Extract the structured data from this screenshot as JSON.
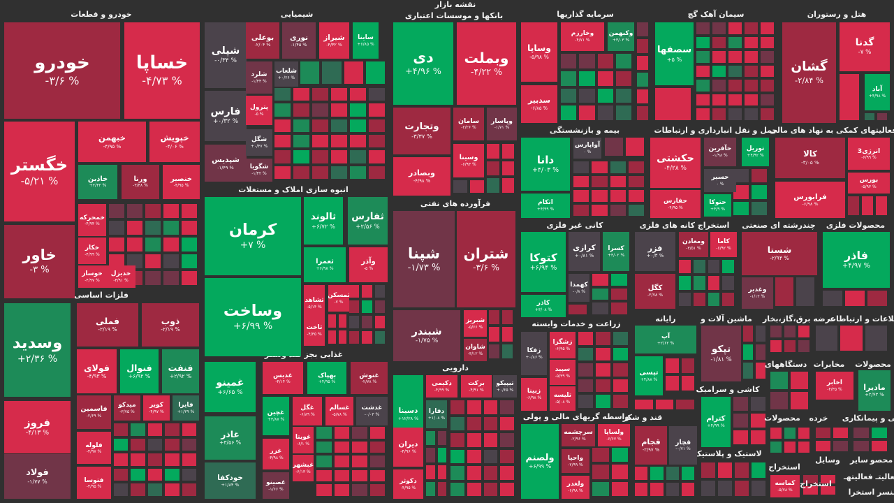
{
  "header": {
    "title": "نقشه بازار"
  },
  "colors": {
    "R": "#d62b4b",
    "r": "#9e2941",
    "m": "#713548",
    "g": "#4b434b",
    "G": "#04a95d",
    "d": "#1d8b58",
    "D": "#2f6b54"
  },
  "sectors": [
    {
      "title": "خودرو و قطعات"
    },
    {
      "title": "شیمیایی"
    },
    {
      "title": "بانکها و موسسات اعتباری"
    },
    {
      "title": "سرمایه گذاریها"
    },
    {
      "title": "سیمان آهک گچ"
    },
    {
      "title": "هتل و رستوران"
    },
    {
      "title": "بیمه و بازنشستگی"
    },
    {
      "title": "حمل و نقل انبارداری و ارتباطات"
    },
    {
      "title": "فعالیتهای کمکی به نهاد های مالی"
    },
    {
      "title": "انبوه سازی املاک و مستغلات"
    },
    {
      "title": "فرآورده های نفتی"
    },
    {
      "title": "کانی غیر فلزی"
    },
    {
      "title": "استخراج کانه های فلزی"
    },
    {
      "title": "چندرشته ای صنعتی"
    },
    {
      "title": "محصولات فلزی"
    },
    {
      "title": "فلزات اساسی"
    },
    {
      "title": "زراعت و خدمات وابسته"
    },
    {
      "title": "رایانه"
    },
    {
      "title": "ماشین آلات و"
    },
    {
      "title": "عرضه برق،گاز،بخار"
    },
    {
      "title": "اطلاعات و ارتباطات"
    },
    {
      "title": "غذایی بجز قند وشکر"
    },
    {
      "title": "دارویی"
    },
    {
      "title": "دستگاههای"
    },
    {
      "title": "مخابرات"
    },
    {
      "title": "محصولات"
    },
    {
      "title": "کاشی و سرامیک"
    },
    {
      "title": "واسطه گریهای مالی و پولی"
    },
    {
      "title": "قند و شکر"
    },
    {
      "title": "فنی و پیمانکاری"
    },
    {
      "title": "خرده"
    },
    {
      "title": "محصولات"
    },
    {
      "title": "لاستیک و پلاستیک"
    },
    {
      "title": "وسایل"
    },
    {
      "title": "سایر"
    },
    {
      "title": "محصو"
    },
    {
      "title": "استخراج"
    },
    {
      "title": "فعالیتـ فعالیتهـ"
    },
    {
      "title": "استخراج"
    },
    {
      "title": "منسر استخرا"
    }
  ],
  "tiles": [
    {
      "symbol": "خودرو",
      "change": "-۳/۶ %",
      "tone": "r"
    },
    {
      "symbol": "خساپا",
      "change": "-۴/۷۳ %",
      "tone": "R"
    },
    {
      "symbol": "خگستر",
      "change": "-۵/۲۱ %",
      "tone": "R"
    },
    {
      "symbol": "خبهمن",
      "change": "-۴/۹۵ %",
      "tone": "R"
    },
    {
      "symbol": "خپویش",
      "change": "-۴/۰۶ %",
      "tone": "R"
    },
    {
      "symbol": "خاذین",
      "change": "+۲/۴۲ %",
      "tone": "d"
    },
    {
      "symbol": "ورنا",
      "change": "-۳/۴۸ %",
      "tone": "r"
    },
    {
      "symbol": "خنصیر",
      "change": "-۴/۹۵ %",
      "tone": "R"
    },
    {
      "symbol": "خاور",
      "change": "-۳ %",
      "tone": "r"
    },
    {
      "symbol": "خمحرکه",
      "change": "-۴/۹۴ %",
      "tone": "R"
    },
    {
      "symbol": "خکار",
      "change": "-۴/۹۹ %",
      "tone": "R"
    },
    {
      "symbol": "خوساز",
      "change": "-۴/۹۷ %",
      "tone": "R"
    },
    {
      "symbol": "خدیزل",
      "change": "-۴/۹۱ %",
      "tone": "R"
    },
    {
      "symbol": "وسدید",
      "change": "+۲/۳۶ %",
      "tone": "d"
    },
    {
      "symbol": "فروز",
      "change": "-۴/۱۳ %",
      "tone": "R"
    },
    {
      "symbol": "فولاد",
      "change": "-۱/۷۷ %",
      "tone": "m"
    },
    {
      "symbol": "فملی",
      "change": "-۲/۱۹ %",
      "tone": "r"
    },
    {
      "symbol": "ذوب",
      "change": "-۲/۱۹ %",
      "tone": "r"
    },
    {
      "symbol": "فولای",
      "change": "-۴/۹۳ %",
      "tone": "R"
    },
    {
      "symbol": "فنوال",
      "change": "+۶/۹۲ %",
      "tone": "G"
    },
    {
      "symbol": "فنفت",
      "change": "+۲/۹۲ %",
      "tone": "d"
    },
    {
      "symbol": "فاسمین",
      "change": "-۲/۶۹ %",
      "tone": "r"
    },
    {
      "symbol": "میدکو",
      "change": "-۳/۷۵ %",
      "tone": "r"
    },
    {
      "symbol": "کویر",
      "change": "-۴/۹۷ %",
      "tone": "R"
    },
    {
      "symbol": "فایرا",
      "change": "+۱/۳۹ %",
      "tone": "D"
    },
    {
      "symbol": "فلوله",
      "change": "-۴/۹۷ %",
      "tone": "R"
    },
    {
      "symbol": "فتوسا",
      "change": "-۴/۹۵ %",
      "tone": "R"
    },
    {
      "symbol": "شپلی",
      "change": "-۰/۳۴ %",
      "tone": "g"
    },
    {
      "symbol": "فارس",
      "change": "+۰/۳۲ %",
      "tone": "g"
    },
    {
      "symbol": "شپدیس",
      "change": "-۱/۴۹ %",
      "tone": "m"
    },
    {
      "symbol": "بوعلی",
      "change": "-۲/۰۴ %",
      "tone": "r"
    },
    {
      "symbol": "نوری",
      "change": "-۱/۴۵ %",
      "tone": "m"
    },
    {
      "symbol": "شیراز",
      "change": "-۴/۳۲ %",
      "tone": "R"
    },
    {
      "symbol": "ساینا",
      "change": "+۶/۸۵ %",
      "tone": "G"
    },
    {
      "symbol": "شلرد",
      "change": "-۱/۴۴ %",
      "tone": "m"
    },
    {
      "symbol": "شلعاب",
      "change": "+۰/۲۶ %",
      "tone": "g"
    },
    {
      "symbol": "پترول",
      "change": "-۵ %",
      "tone": "R"
    },
    {
      "symbol": "شگل",
      "change": "+۰/۴۷ %",
      "tone": "g"
    },
    {
      "symbol": "شگویا",
      "change": "-۱/۴۲ %",
      "tone": "m"
    },
    {
      "symbol": "کرمان",
      "change": "+۷ %",
      "tone": "G"
    },
    {
      "symbol": "وساخت",
      "change": "+۶/۹۹ %",
      "tone": "G"
    },
    {
      "symbol": "ثالوند",
      "change": "+۶/۷۲ %",
      "tone": "G"
    },
    {
      "symbol": "ثفارس",
      "change": "+۲/۵۶ %",
      "tone": "d"
    },
    {
      "symbol": "ثعمرا",
      "change": "+۶/۹۸ %",
      "tone": "G"
    },
    {
      "symbol": "وآذر",
      "change": "-۵ %",
      "tone": "R"
    },
    {
      "symbol": "ثشاهد",
      "change": "-۵/۱۴ %",
      "tone": "R"
    },
    {
      "symbol": "ثمسکن",
      "change": "-۷ %",
      "tone": "R"
    },
    {
      "symbol": "ثاخت",
      "change": "-۴/۳۵ %",
      "tone": "R"
    },
    {
      "symbol": "غمینو",
      "change": "+۶/۶۵ %",
      "tone": "G"
    },
    {
      "symbol": "غاذر",
      "change": "+۳/۵۶ %",
      "tone": "d"
    },
    {
      "symbol": "خودکفا",
      "change": "+۱/۸۴ %",
      "tone": "D"
    },
    {
      "symbol": "غدیس",
      "change": "-۴/۱۴ %",
      "tone": "R"
    },
    {
      "symbol": "بهپاک",
      "change": "+۴/۹۵ %",
      "tone": "G"
    },
    {
      "symbol": "غنوش",
      "change": "-۲/۷۸ %",
      "tone": "r"
    },
    {
      "symbol": "غچین",
      "change": "+۳/۸۷ %",
      "tone": "G"
    },
    {
      "symbol": "غگل",
      "change": "-۶/۸۹ %",
      "tone": "R"
    },
    {
      "symbol": "غسالم",
      "change": "-۵/۷۸ %",
      "tone": "R"
    },
    {
      "symbol": "غدشت",
      "change": "-۰/۰۳ %",
      "tone": "g"
    },
    {
      "symbol": "غویتا",
      "change": "-۶/۱ %",
      "tone": "R"
    },
    {
      "symbol": "غزر",
      "change": "-۴/۹۸ %",
      "tone": "R"
    },
    {
      "symbol": "غبشهر",
      "change": "-۶/۱۳ %",
      "tone": "R"
    },
    {
      "symbol": "غصینو",
      "change": "-۱/۶۶ %",
      "tone": "m"
    },
    {
      "symbol": "دی",
      "change": "+۴/۹۶ %",
      "tone": "G"
    },
    {
      "symbol": "وبملت",
      "change": "-۴/۲۲ %",
      "tone": "R"
    },
    {
      "symbol": "وتجارت",
      "change": "-۳/۳۷ %",
      "tone": "r"
    },
    {
      "symbol": "وبصادر",
      "change": "-۴/۹۸ %",
      "tone": "R"
    },
    {
      "symbol": "سامان",
      "change": "-۲/۲۶ %",
      "tone": "r"
    },
    {
      "symbol": "وپاسار",
      "change": "-۱/۷۱ %",
      "tone": "m"
    },
    {
      "symbol": "وسینا",
      "change": "-۶/۹۳ %",
      "tone": "R"
    },
    {
      "symbol": "شپنا",
      "change": "-۱/۷۳ %",
      "tone": "m"
    },
    {
      "symbol": "شتران",
      "change": "-۳/۶ %",
      "tone": "r"
    },
    {
      "symbol": "شبندر",
      "change": "-۱/۷۵ %",
      "tone": "m"
    },
    {
      "symbol": "شبریز",
      "change": "-۵/۶۶ %",
      "tone": "R"
    },
    {
      "symbol": "شاوان",
      "change": "-۳/۱۲ %",
      "tone": "r"
    },
    {
      "symbol": "دسینا",
      "change": "+۱۲/۲۸ %",
      "tone": "G"
    },
    {
      "symbol": "دکیمی",
      "change": "-۴/۹۹ %",
      "tone": "R"
    },
    {
      "symbol": "برکت",
      "change": "-۴/۹۱ %",
      "tone": "R"
    },
    {
      "symbol": "تیپیکو",
      "change": "+۰/۶۵ %",
      "tone": "g"
    },
    {
      "symbol": "دفارا",
      "change": "+۱/۰۸ %",
      "tone": "D"
    },
    {
      "symbol": "دیران",
      "change": "-۴/۹۶ %",
      "tone": "R"
    },
    {
      "symbol": "دکوثر",
      "change": "-۴/۹۵ %",
      "tone": "R"
    },
    {
      "symbol": "وساپا",
      "change": "-۵/۹۸ %",
      "tone": "R"
    },
    {
      "symbol": "سدبیر",
      "change": "-۶/۸۵ %",
      "tone": "R"
    },
    {
      "symbol": "وخارزم",
      "change": "-۴/۷۱ %",
      "tone": "R"
    },
    {
      "symbol": "وکبهمن",
      "change": "+۳/۰۳ %",
      "tone": "d"
    },
    {
      "symbol": "سصفها",
      "change": "+۵ %",
      "tone": "G"
    },
    {
      "symbol": "گشان",
      "change": "-۲/۸۴ %",
      "tone": "r"
    },
    {
      "symbol": "گدنا",
      "change": "-۷ %",
      "tone": "R"
    },
    {
      "symbol": "آباد",
      "change": "+۴/۹۸ %",
      "tone": "G"
    },
    {
      "symbol": "دانا",
      "change": "+۴/۰۳ %",
      "tone": "G"
    },
    {
      "symbol": "آواپارس",
      "change": "۰ %",
      "tone": "g"
    },
    {
      "symbol": "اتکام",
      "change": "+۴/۹۹ %",
      "tone": "G"
    },
    {
      "symbol": "حکشتی",
      "change": "-۴/۲۸ %",
      "tone": "R"
    },
    {
      "symbol": "حآفرین",
      "change": "-۱/۹۸ %",
      "tone": "m"
    },
    {
      "symbol": "توریل",
      "change": "+۴/۹۲ %",
      "tone": "G"
    },
    {
      "symbol": "حسیر",
      "change": "۰ %",
      "tone": "g"
    },
    {
      "symbol": "حفارس",
      "change": "-۴/۹۵ %",
      "tone": "R"
    },
    {
      "symbol": "حتوکا",
      "change": "+۴/۹ %",
      "tone": "G"
    },
    {
      "symbol": "کالا",
      "change": "-۳/۰۵ %",
      "tone": "r"
    },
    {
      "symbol": "انرژی3",
      "change": "-۶/۹۹ %",
      "tone": "R"
    },
    {
      "symbol": "بورس",
      "change": "-۵/۹۳ %",
      "tone": "R"
    },
    {
      "symbol": "فرابورس",
      "change": "-۶/۹۸ %",
      "tone": "R"
    },
    {
      "symbol": "کتوکا",
      "change": "+۶/۹۴ %",
      "tone": "G"
    },
    {
      "symbol": "کرازی",
      "change": "+۰/۸۱ %",
      "tone": "g"
    },
    {
      "symbol": "کسرا",
      "change": "+۳/۰۲ %",
      "tone": "d"
    },
    {
      "symbol": "کهمدا",
      "change": "-۰/۸ %",
      "tone": "g"
    },
    {
      "symbol": "کاذر",
      "change": "+۳/۰۸ %",
      "tone": "G"
    },
    {
      "symbol": "فزر",
      "change": "+۰/۳ %",
      "tone": "g"
    },
    {
      "symbol": "کگل",
      "change": "-۲/۷۸ %",
      "tone": "r"
    },
    {
      "symbol": "ومعادن",
      "change": "-۳/۵۱ %",
      "tone": "r"
    },
    {
      "symbol": "کاما",
      "change": "-۶/۹۲ %",
      "tone": "R"
    },
    {
      "symbol": "شستا",
      "change": "-۲/۹۴ %",
      "tone": "r"
    },
    {
      "symbol": "وغدیر",
      "change": "-۱/۱۲ %",
      "tone": "m"
    },
    {
      "symbol": "فاذر",
      "change": "+۴/۹۷ %",
      "tone": "G"
    },
    {
      "symbol": "زفکا",
      "change": "+۰/۸۶ %",
      "tone": "g"
    },
    {
      "symbol": "زشگزا",
      "change": "-۶/۹۵ %",
      "tone": "R"
    },
    {
      "symbol": "سپید",
      "change": "-۵/۳۹ %",
      "tone": "R"
    },
    {
      "symbol": "زبینا",
      "change": "-۶/۹۸ %",
      "tone": "R"
    },
    {
      "symbol": "تلیسه",
      "change": "-۵/۰۸ %",
      "tone": "R"
    },
    {
      "symbol": "آپ",
      "change": "+۲/۶۲ %",
      "tone": "d"
    },
    {
      "symbol": "تپسی",
      "change": "+۴/۸۸ %",
      "tone": "G"
    },
    {
      "symbol": "تپکو",
      "change": "-۱/۸۱ %",
      "tone": "m"
    },
    {
      "symbol": "اخابر",
      "change": "-۴/۳۵ %",
      "tone": "R"
    },
    {
      "symbol": "مادیرا",
      "change": "+۲/۴۳ %",
      "tone": "d"
    },
    {
      "symbol": "کترام",
      "change": "+۴/۹۹ %",
      "tone": "G"
    },
    {
      "symbol": "کماسه",
      "change": "-۵/۷۸ %",
      "tone": "R"
    },
    {
      "symbol": "ولصنم",
      "change": "+۶/۹۹ %",
      "tone": "G"
    },
    {
      "symbol": "سرچشمه",
      "change": "-۲/۹۶ %",
      "tone": "r"
    },
    {
      "symbol": "ولساپا",
      "change": "-۶/۶۷ %",
      "tone": "R"
    },
    {
      "symbol": "واحیا",
      "change": "-۲/۹۹ %",
      "tone": "r"
    },
    {
      "symbol": "ولغدر",
      "change": "-۶/۹۸ %",
      "tone": "R"
    },
    {
      "symbol": "قجام",
      "change": "-۲/۹۷ %",
      "tone": "r"
    },
    {
      "symbol": "قچار",
      "change": "-۰/۷۱ %",
      "tone": "g"
    }
  ]
}
